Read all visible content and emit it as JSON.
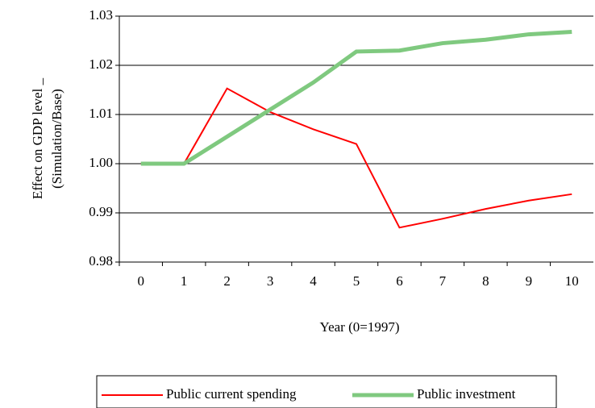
{
  "chart_data": {
    "type": "line",
    "y_label": [
      "Effect on GDP level _",
      "(Simulation/Base)"
    ],
    "x_label": "Year (0=1997)",
    "categories": [
      "0",
      "1",
      "2",
      "3",
      "4",
      "5",
      "6",
      "7",
      "8",
      "9",
      "10"
    ],
    "series": [
      {
        "name": "Public current spending",
        "color": "#ff0000",
        "width": 2,
        "values": [
          1.0,
          1.0,
          1.0153,
          1.0105,
          1.007,
          1.004,
          0.987,
          0.9888,
          0.9908,
          0.9925,
          0.9938
        ]
      },
      {
        "name": "Public investment",
        "color": "#7fc97f",
        "width": 5,
        "values": [
          1.0,
          1.0,
          1.0055,
          1.011,
          1.0165,
          1.0228,
          1.023,
          1.0245,
          1.0252,
          1.0263,
          1.0268
        ]
      }
    ],
    "ylim": [
      0.98,
      1.03
    ],
    "yticks": [
      0.98,
      0.99,
      {
        "value": 1.0,
        "label": "1.00"
      },
      1.01,
      1.02,
      1.03
    ],
    "grid": true,
    "legend": "bottom"
  }
}
